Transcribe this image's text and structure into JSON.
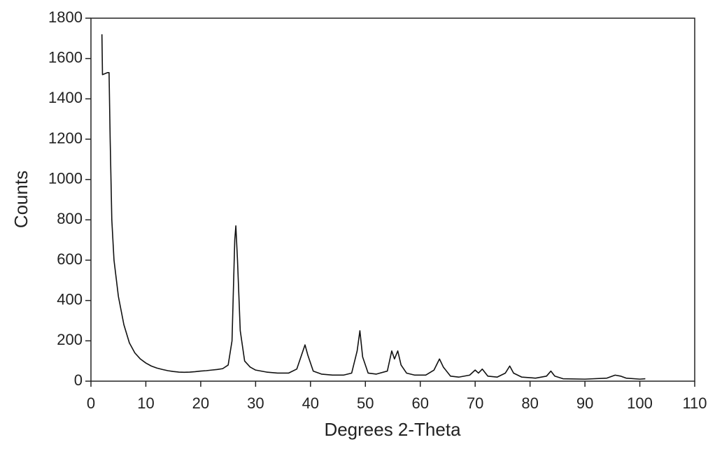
{
  "chart_data": {
    "type": "line",
    "x_label": "Degrees 2-Theta",
    "y_label": "Counts",
    "color": "#111111",
    "x": [
      2.0,
      2.1,
      3.0,
      3.3,
      3.5,
      3.8,
      4.2,
      5,
      6,
      7,
      8,
      9,
      10,
      11,
      12,
      13,
      14,
      15,
      16,
      17,
      18,
      19,
      20,
      21,
      22,
      23,
      24,
      25,
      25.7,
      26.2,
      26.4,
      26.7,
      27.2,
      28,
      29,
      30,
      32,
      34,
      36,
      37.5,
      38.5,
      39,
      39.5,
      40.5,
      42,
      44,
      46,
      47.5,
      48.5,
      49,
      49.5,
      50.5,
      52,
      54,
      54.8,
      55.3,
      55.9,
      56.5,
      57.5,
      59,
      61,
      62.5,
      63.5,
      64.2,
      65.5,
      67,
      69,
      70,
      70.6,
      71.3,
      72.3,
      74,
      75.5,
      76.3,
      77,
      78.5,
      81,
      83,
      83.8,
      84.5,
      86,
      90,
      94,
      95.5,
      96.5,
      97.5,
      100,
      101
    ],
    "values": [
      1720,
      1520,
      1530,
      1530,
      1200,
      800,
      600,
      420,
      280,
      190,
      140,
      110,
      90,
      75,
      65,
      58,
      52,
      48,
      45,
      44,
      45,
      47,
      50,
      52,
      55,
      58,
      62,
      80,
      200,
      700,
      770,
      600,
      250,
      100,
      70,
      55,
      45,
      40,
      40,
      60,
      140,
      180,
      130,
      50,
      35,
      30,
      30,
      40,
      150,
      250,
      120,
      40,
      35,
      50,
      150,
      110,
      150,
      80,
      40,
      30,
      30,
      55,
      110,
      70,
      25,
      20,
      30,
      55,
      40,
      60,
      25,
      20,
      40,
      75,
      40,
      20,
      15,
      25,
      50,
      25,
      12,
      10,
      15,
      30,
      25,
      15,
      10,
      12
    ],
    "xlim": [
      0,
      110
    ],
    "xticks": [
      0,
      10,
      20,
      30,
      40,
      50,
      60,
      70,
      80,
      90,
      100,
      110
    ],
    "ylim": [
      0,
      1800
    ],
    "yticks": [
      0,
      200,
      400,
      600,
      800,
      1000,
      1200,
      1400,
      1600,
      1800
    ]
  }
}
